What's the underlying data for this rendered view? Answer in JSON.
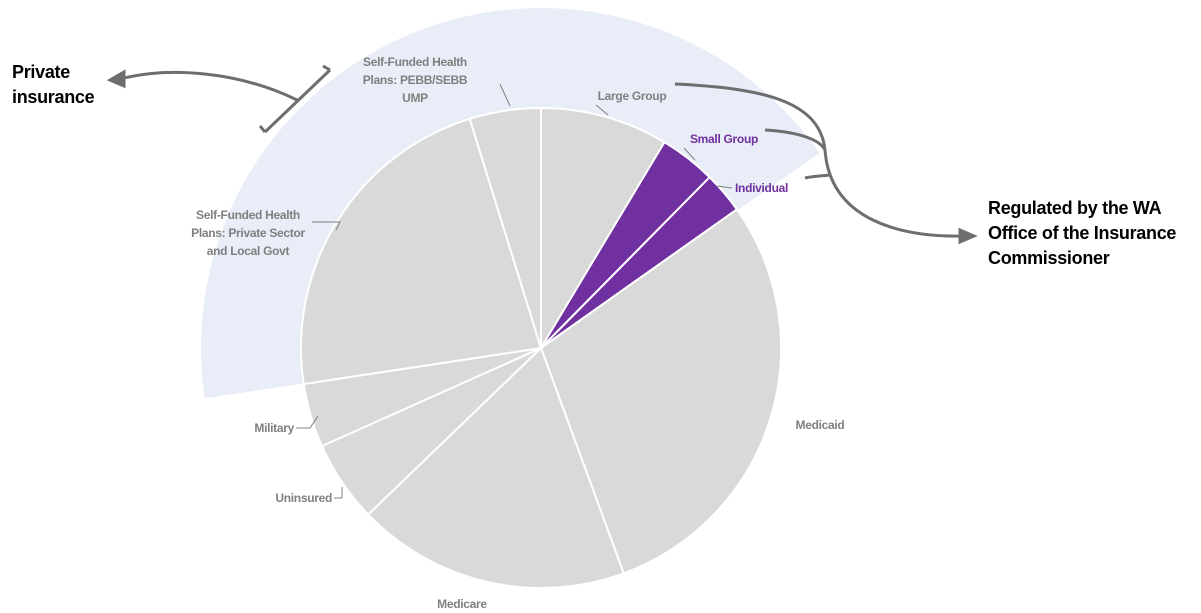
{
  "chart_data": {
    "type": "pie",
    "categories": [
      "Large Group",
      "Small Group",
      "Individual",
      "Medicaid",
      "Medicare",
      "Uninsured",
      "Military",
      "Self-Funded Health\nPlans: Private Sector\nand Local Govt",
      "Self-Funded Health\nPlans: PEBB/SEBB\nUMP"
    ],
    "values": [
      8.6,
      3.8,
      2.8,
      29.2,
      18.4,
      5.5,
      4.3,
      22.6,
      4.8
    ],
    "colors": [
      "#d9d9d9",
      "#7030a0",
      "#7030a0",
      "#d9d9d9",
      "#d9d9d9",
      "#d9d9d9",
      "#d9d9d9",
      "#d9d9d9",
      "#d9d9d9"
    ],
    "annotations": [
      "Private\ninsurance",
      "Regulated by the WA\nOffice of the Insurance\nCommissioner"
    ]
  }
}
